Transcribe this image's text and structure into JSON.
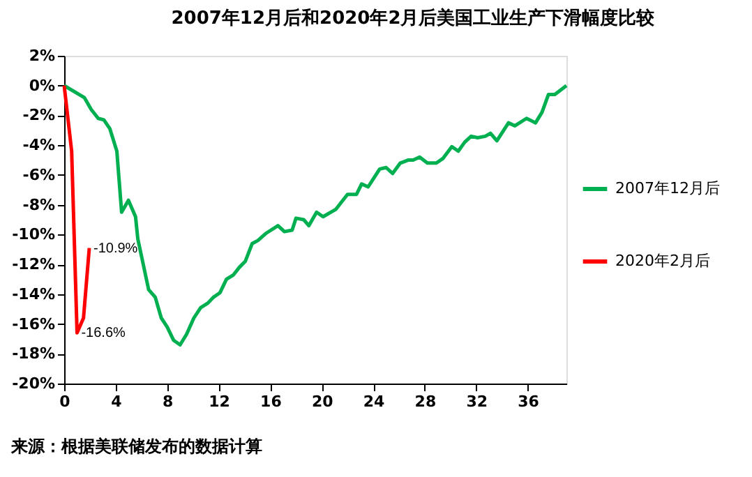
{
  "chart_data": {
    "type": "line",
    "title": "2007年12月后和2020年2月后美国工业生产下滑幅度比较",
    "xlim": [
      0,
      39
    ],
    "xticks": [
      0,
      4,
      8,
      12,
      16,
      20,
      24,
      28,
      32,
      36
    ],
    "ylim": [
      -20,
      2
    ],
    "yticks": [
      {
        "value": 2,
        "label": "2%"
      },
      {
        "value": 0,
        "label": "0%"
      },
      {
        "value": -2,
        "label": "-2%"
      },
      {
        "value": -4,
        "label": "-4%"
      },
      {
        "value": -6,
        "label": "-6%"
      },
      {
        "value": -8,
        "label": "-8%"
      },
      {
        "value": -10,
        "label": "-10%"
      },
      {
        "value": -12,
        "label": "-12%"
      },
      {
        "value": -14,
        "label": "-14%"
      },
      {
        "value": -16,
        "label": "-16%"
      },
      {
        "value": -18,
        "label": "-18%"
      },
      {
        "value": -20,
        "label": "-20%"
      }
    ],
    "grid": false,
    "legend": "right",
    "line_style": "solid",
    "marker": "none",
    "series": [
      {
        "name": "2007年12月后",
        "color": "#00b050",
        "x": [
          0,
          1.56,
          2.1,
          2.64,
          3.08,
          3.55,
          4.09,
          4.46,
          4.99,
          5.54,
          5.72,
          6.56,
          7.07,
          7.54,
          8.0,
          8.5,
          9.0,
          9.5,
          10.07,
          10.6,
          11.16,
          11.6,
          12.1,
          12.6,
          13.15,
          13.6,
          14.06,
          14.6,
          15.04,
          15.7,
          16.6,
          17.1,
          17.7,
          18.0,
          18.6,
          19.0,
          19.6,
          20.1,
          21.1,
          22.0,
          22.7,
          23.1,
          23.6,
          24.5,
          25.0,
          25.5,
          26.1,
          26.7,
          27.1,
          27.6,
          28.2,
          28.9,
          29.4,
          30.1,
          30.6,
          31.1,
          31.6,
          32.1,
          32.7,
          33.1,
          33.6,
          34.5,
          35.0,
          35.9,
          36.6,
          37.1,
          37.6,
          38.1,
          39.0
        ],
        "values": [
          0,
          -0.8,
          -1.6,
          -2.2,
          -2.3,
          -2.9,
          -4.4,
          -8.5,
          -7.7,
          -8.8,
          -10.3,
          -13.7,
          -14.2,
          -15.6,
          -16.2,
          -17.1,
          -17.4,
          -16.7,
          -15.6,
          -14.9,
          -14.6,
          -14.2,
          -13.9,
          -13.0,
          -12.7,
          -12.2,
          -11.8,
          -10.6,
          -10.4,
          -9.9,
          -9.4,
          -9.8,
          -9.7,
          -8.9,
          -9.0,
          -9.4,
          -8.5,
          -8.8,
          -8.3,
          -7.3,
          -7.3,
          -6.6,
          -6.8,
          -5.6,
          -5.5,
          -5.9,
          -5.2,
          -5.0,
          -5.0,
          -4.8,
          -5.2,
          -5.2,
          -4.9,
          -4.1,
          -4.4,
          -3.8,
          -3.4,
          -3.5,
          -3.4,
          -3.2,
          -3.7,
          -2.5,
          -2.7,
          -2.2,
          -2.5,
          -1.8,
          -0.6,
          -0.6,
          0.0
        ]
      },
      {
        "name": "2020年2月后",
        "color": "#ff0000",
        "x": [
          0,
          0.58,
          1.0,
          1.5,
          1.95
        ],
        "values": [
          0,
          -4.4,
          -16.6,
          -15.6,
          -10.9
        ]
      }
    ],
    "annotations": [
      {
        "text": "-10.9%",
        "x": 1.95,
        "y": -10.9
      },
      {
        "text": "-16.6%",
        "x": 1.0,
        "y": -16.6
      },
      "来源：根据美联储发布的数据计算"
    ]
  }
}
